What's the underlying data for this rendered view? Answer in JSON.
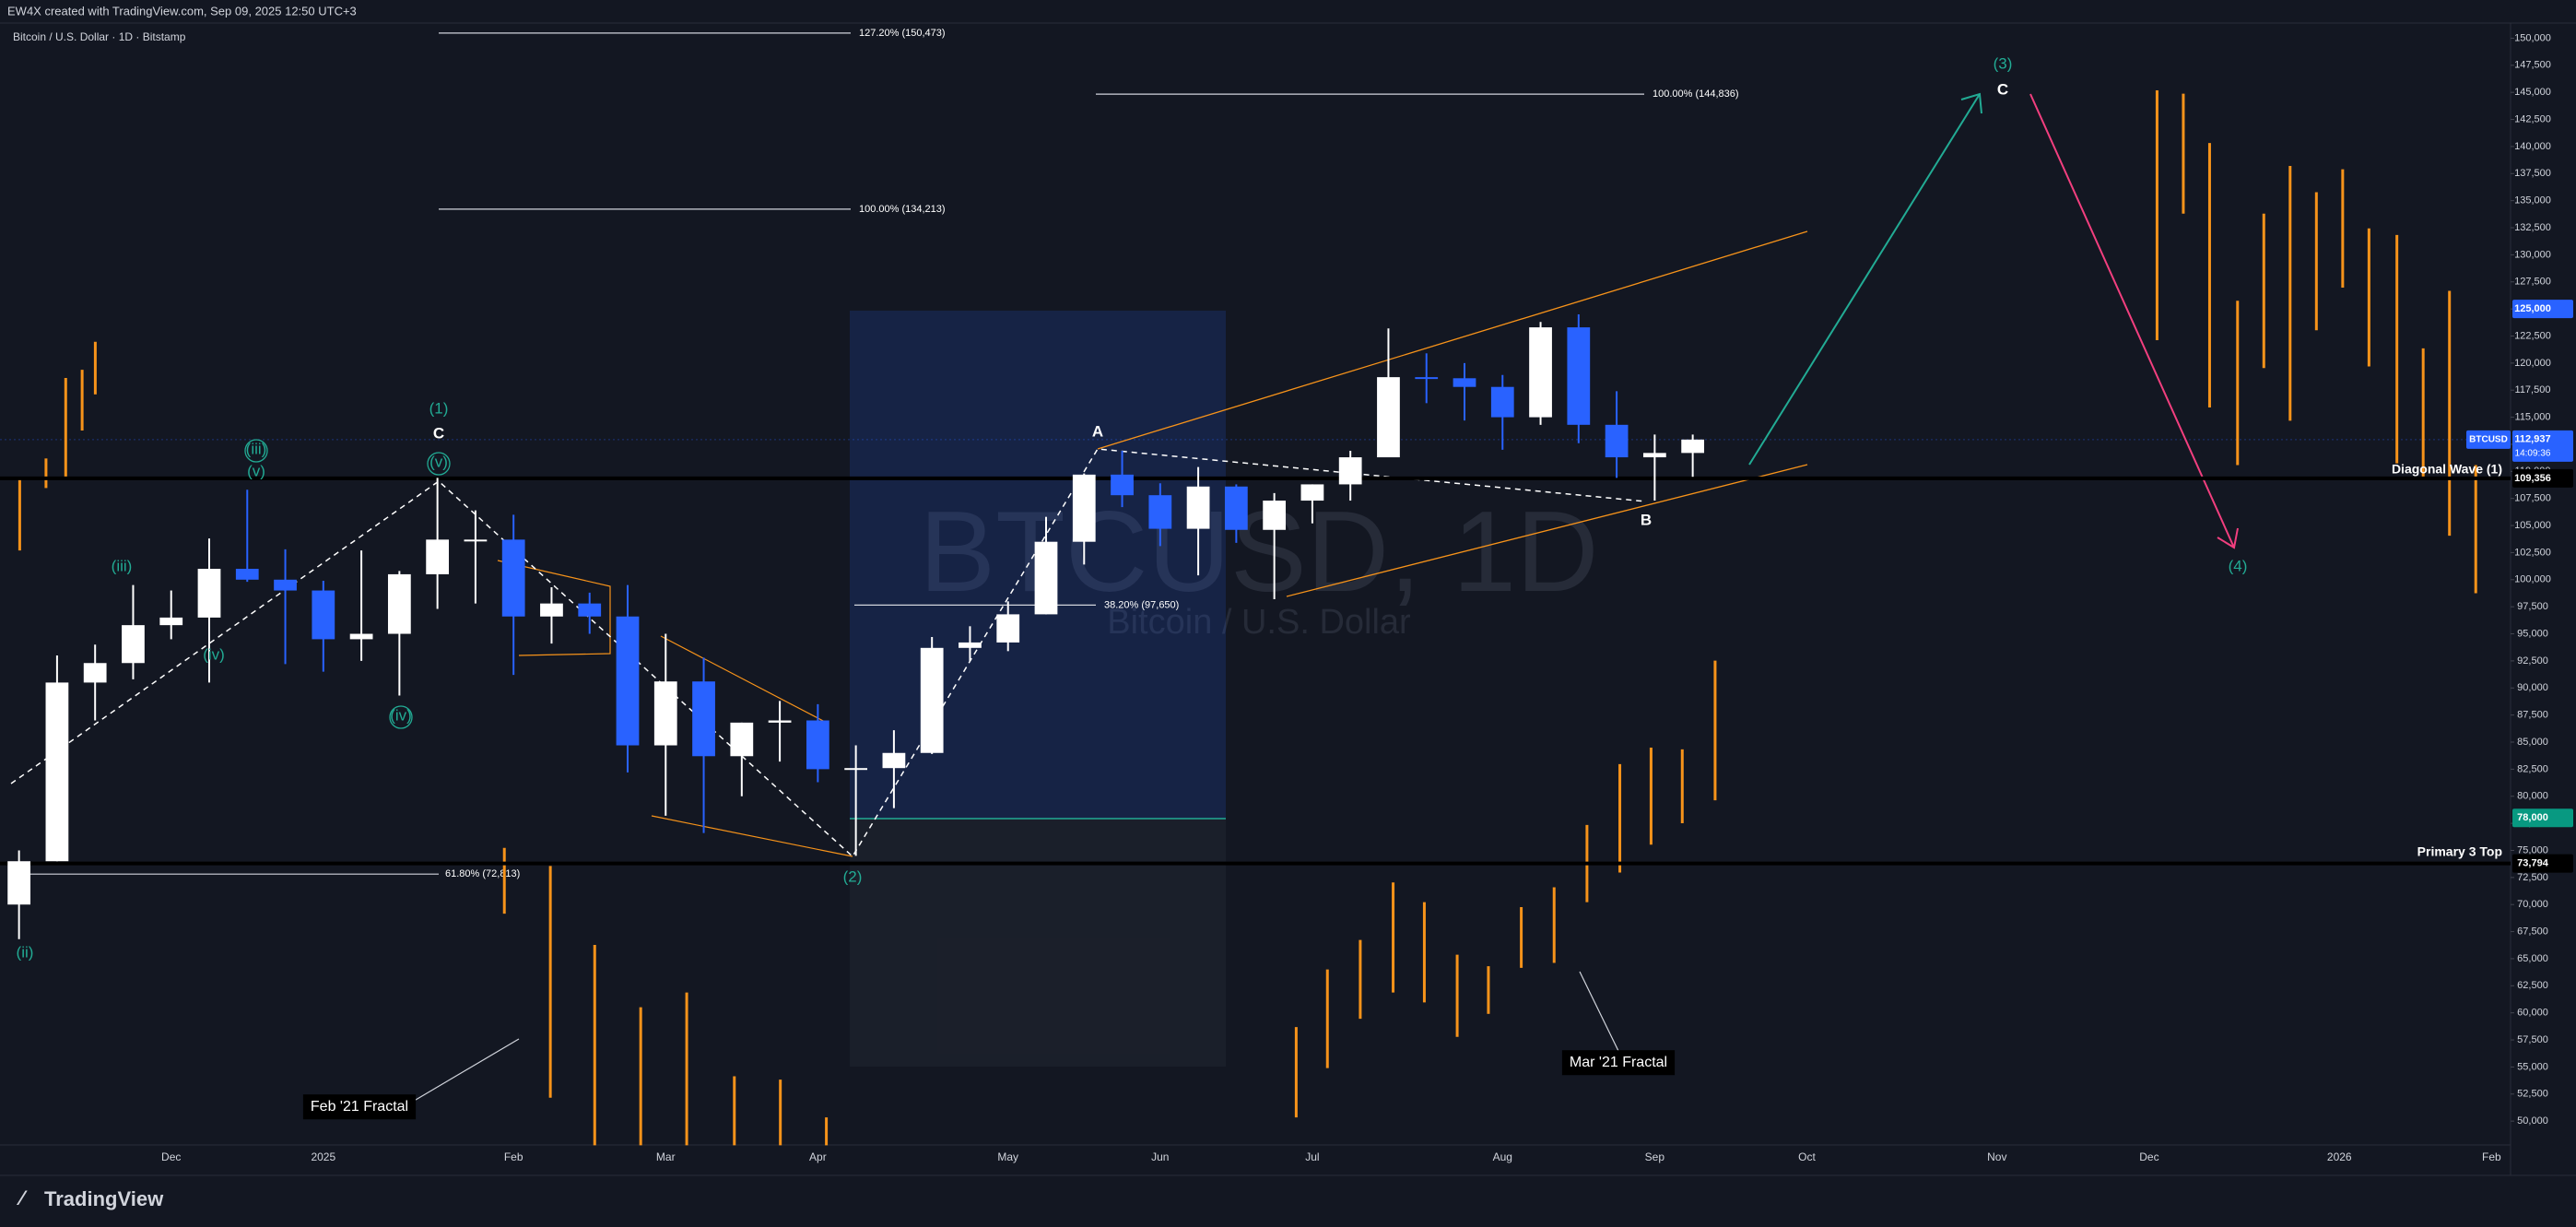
{
  "chart_data": {
    "type": "candlestick",
    "header": "EW4X created with TradingView.com, Sep 09, 2025 12:50 UTC+3",
    "title": "Bitcoin / U.S. Dollar · 1D · Bitstamp",
    "watermark": "BTCUSD, 1D",
    "watermark_subtitle": "Bitcoin / U.S. Dollar",
    "brand": "TradingView",
    "up_color": "#ffffff",
    "down_color": "#2962ff",
    "categories": [
      null,
      null,
      null,
      null,
      "Dec",
      null,
      null,
      null,
      "2025",
      null,
      null,
      null,
      null,
      "Feb",
      null,
      null,
      null,
      "Mar",
      null,
      null,
      null,
      "Apr",
      null,
      null,
      null,
      null,
      "May",
      null,
      null,
      null,
      "Jun",
      null,
      null,
      null,
      "Jul",
      null,
      null,
      null,
      null,
      "Aug",
      null,
      null,
      null,
      "Sep",
      null,
      null,
      null,
      "Oct",
      null,
      null,
      null,
      null,
      "Nov",
      null,
      null,
      null,
      "Dec",
      null,
      null,
      null,
      null,
      "2026",
      null,
      null,
      null,
      "Feb"
    ],
    "open": [
      70000,
      74000,
      90500,
      92300,
      95800,
      96500,
      101000,
      100000,
      99000,
      94500,
      95000,
      100500,
      103700,
      103700,
      96600,
      97800,
      96600,
      84700,
      90600,
      83700,
      86800,
      87000,
      82500,
      82600,
      84000,
      93700,
      94200,
      96800,
      103500,
      109700,
      107800,
      104700,
      108600,
      104600,
      107300,
      108800,
      111300,
      118700,
      118600,
      117800,
      115000,
      123300,
      114300,
      111300,
      111700,
      null,
      null,
      null,
      null,
      null,
      null,
      null,
      null,
      null,
      null,
      null,
      null,
      null,
      null,
      null,
      null,
      null,
      null,
      null,
      null,
      null
    ],
    "high": [
      75000,
      93000,
      94000,
      99500,
      99000,
      103800,
      108300,
      102800,
      99900,
      102700,
      100800,
      109400,
      106400,
      106000,
      99300,
      98800,
      99500,
      95000,
      92800,
      86800,
      88800,
      88500,
      84700,
      86100,
      94700,
      95700,
      98000,
      105800,
      109800,
      111900,
      108900,
      110400,
      108800,
      108000,
      108800,
      111900,
      123200,
      120900,
      120000,
      118900,
      123800,
      124500,
      117400,
      113400,
      113400,
      null,
      null,
      null,
      null,
      null,
      null,
      null,
      null,
      null,
      null,
      null,
      null,
      null,
      null,
      null,
      null,
      null,
      null,
      null,
      null,
      null
    ],
    "low": [
      66800,
      74000,
      87000,
      90800,
      94500,
      90500,
      99800,
      92200,
      91500,
      92500,
      89300,
      97300,
      97800,
      91200,
      94100,
      95000,
      82200,
      78200,
      76600,
      80000,
      83200,
      81300,
      74500,
      78900,
      83900,
      92500,
      93400,
      96800,
      101400,
      106700,
      103100,
      100400,
      103400,
      98200,
      105200,
      107300,
      111300,
      116300,
      114700,
      112000,
      114300,
      112600,
      109400,
      107300,
      109500,
      null,
      null,
      null,
      null,
      null,
      null,
      null,
      null,
      null,
      null,
      null,
      null,
      null,
      null,
      null,
      null,
      null,
      null,
      null,
      null,
      null
    ],
    "close": [
      74000,
      90500,
      92300,
      95800,
      96500,
      101000,
      100000,
      99000,
      94500,
      95000,
      100500,
      103700,
      103700,
      96600,
      97800,
      96600,
      84700,
      90600,
      83700,
      86800,
      87000,
      82500,
      82600,
      84000,
      93700,
      94200,
      96800,
      103500,
      109700,
      107800,
      104700,
      108600,
      104600,
      107300,
      108800,
      111300,
      118700,
      118600,
      117800,
      115000,
      123300,
      114300,
      111300,
      111700,
      112937,
      null,
      null,
      null,
      null,
      null,
      null,
      null,
      null,
      null,
      null,
      null,
      null,
      null,
      null,
      null,
      null,
      null,
      null,
      null,
      null,
      null
    ],
    "ylim": [
      47800,
      151400
    ],
    "yticks": [
      {
        "value": 50000,
        "label": "50,000"
      },
      {
        "value": 52500,
        "label": "52,500"
      },
      {
        "value": 55000,
        "label": "55,000"
      },
      {
        "value": 57500,
        "label": "57,500"
      },
      {
        "value": 60000,
        "label": "60,000"
      },
      {
        "value": 62500,
        "label": "62,500"
      },
      {
        "value": 65000,
        "label": "65,000"
      },
      {
        "value": 67500,
        "label": "67,500"
      },
      {
        "value": 70000,
        "label": "70,000"
      },
      {
        "value": 72500,
        "label": "72,500"
      },
      {
        "value": 75000,
        "label": "75,000"
      },
      {
        "value": 77500,
        "label": "77,500"
      },
      {
        "value": 80000,
        "label": "80,000"
      },
      {
        "value": 82500,
        "label": "82,500"
      },
      {
        "value": 85000,
        "label": "85,000"
      },
      {
        "value": 87500,
        "label": "87,500"
      },
      {
        "value": 90000,
        "label": "90,000"
      },
      {
        "value": 92500,
        "label": "92,500"
      },
      {
        "value": 95000,
        "label": "95,000"
      },
      {
        "value": 97500,
        "label": "97,500"
      },
      {
        "value": 100000,
        "label": "100,000"
      },
      {
        "value": 102500,
        "label": "102,500"
      },
      {
        "value": 105000,
        "label": "105,000"
      },
      {
        "value": 107500,
        "label": "107,500"
      },
      {
        "value": 110000,
        "label": "110,000"
      },
      {
        "value": 112500,
        "label": "112,500"
      },
      {
        "value": 115000,
        "label": "115,000"
      },
      {
        "value": 117500,
        "label": "117,500"
      },
      {
        "value": 120000,
        "label": "120,000"
      },
      {
        "value": 122500,
        "label": "122,500"
      },
      {
        "value": 125000,
        "label": "125,000"
      },
      {
        "value": 127500,
        "label": "127,500"
      },
      {
        "value": 130000,
        "label": "130,000"
      },
      {
        "value": 132500,
        "label": "132,500"
      },
      {
        "value": 135000,
        "label": "135,000"
      },
      {
        "value": 137500,
        "label": "137,500"
      },
      {
        "value": 140000,
        "label": "140,000"
      },
      {
        "value": 142500,
        "label": "142,500"
      },
      {
        "value": 145000,
        "label": "145,000"
      },
      {
        "value": 147500,
        "label": "147,500"
      },
      {
        "value": 150000,
        "label": "150,000"
      }
    ],
    "levels": [
      {
        "value": 109356,
        "label": "109,356"
      },
      {
        "value": 73794,
        "label": "73,794"
      }
    ],
    "badges": [
      {
        "value": 125000,
        "label": "125,000",
        "color": "#2962ff"
      },
      {
        "value": 78000,
        "label": "78,000",
        "color": "#089981"
      },
      {
        "value": 112937,
        "label": "112,937",
        "sublabel": "14:09:36",
        "symbol": "BTCUSD",
        "color": "#2962ff"
      }
    ],
    "fibs": [
      {
        "value": 150473,
        "label": "127.20% (150,473)"
      },
      {
        "value": 134213,
        "label": "100.00% (134,213)"
      },
      {
        "value": 144836,
        "label": "100.00% (144,836)"
      },
      {
        "value": 97650,
        "label": "38.20% (97,650)"
      },
      {
        "value": 72813,
        "label": "61.80% (72,813)"
      }
    ],
    "annotations": [
      "(1)",
      "C",
      "(v)",
      "(iii)",
      "(v)",
      "(iii)",
      "(iv)",
      "(iv)",
      "(ii)",
      "(2)",
      "A",
      "B",
      "(3)",
      "C",
      "(4)",
      "Diagonal Wave (1)",
      "Primary 3 Top",
      "Feb '21 Fractal",
      "Mar '21 Fractal"
    ]
  }
}
